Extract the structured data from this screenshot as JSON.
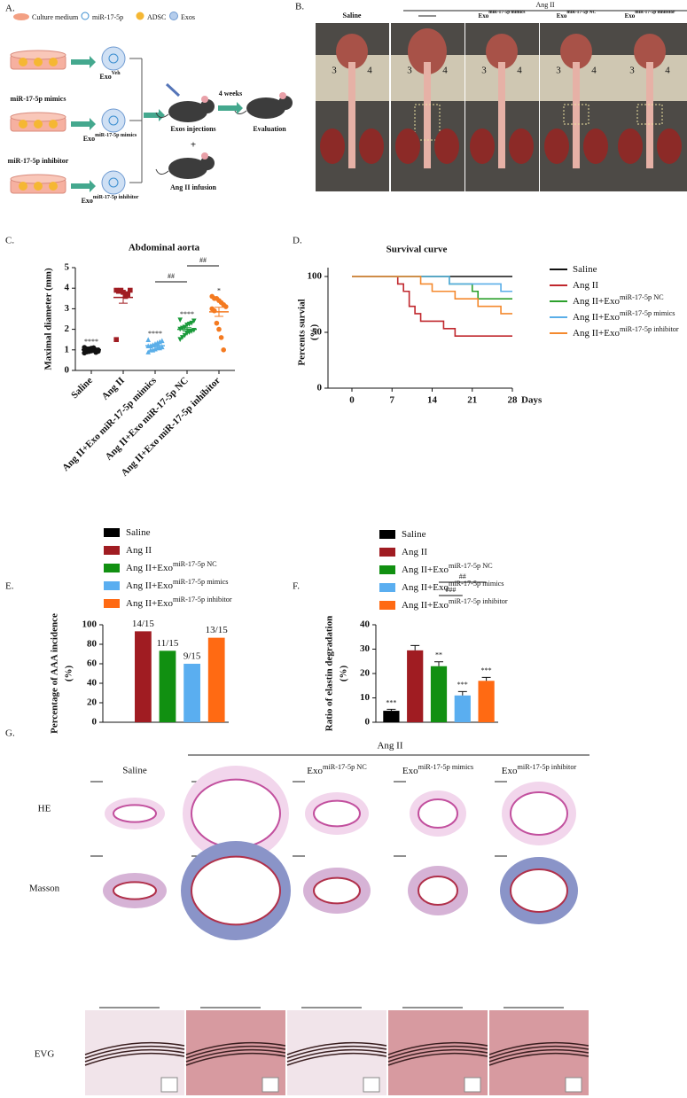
{
  "panel_labels": [
    "A.",
    "B.",
    "C.",
    "D.",
    "E.",
    "F.",
    "G."
  ],
  "schematic": {
    "legend": [
      "Culture medium",
      "miR-17-5p",
      "ADSC",
      "Exos"
    ],
    "treatments": [
      "miR-17-5p mimics",
      "miR-17-5p inhibitor"
    ],
    "exos": [
      {
        "text": "Exo",
        "sup": "Veh"
      },
      {
        "text": "Exo",
        "sup": "miR-17-5p mimics"
      },
      {
        "text": "Exo",
        "sup": "miR-17-5p inhibitor"
      }
    ],
    "steps": {
      "injection": "Exos injections",
      "plus": "+",
      "infusion": "Ang II infusion",
      "duration": "4 weeks",
      "outcome": "Evaluation"
    }
  },
  "photos": {
    "group": "Ang II",
    "saline": "Saline",
    "columns": [
      {
        "text": "Exo",
        "sup": "miR-17-5p mimics"
      },
      {
        "text": "Exo",
        "sup": "miR-17-5p NC"
      },
      {
        "text": "Exo",
        "sup": "miR-17-5p inhibitor"
      }
    ],
    "ruler": [
      "3",
      "4"
    ]
  },
  "histology": {
    "group": "Ang II",
    "saline": "Saline",
    "columns": [
      {
        "text": "Exo",
        "sup": "miR-17-5p NC"
      },
      {
        "text": "Exo",
        "sup": "miR-17-5p mimics"
      },
      {
        "text": "Exo",
        "sup": "miR-17-5p inhibitor"
      }
    ],
    "rows": [
      "HE",
      "Masson",
      "EVG"
    ]
  },
  "chart_data": [
    {
      "type": "dotplot",
      "title": "Abdominal aorta",
      "ylabel": "Maximal diameter (mm)",
      "categories": [
        "Saline",
        "Ang II",
        "Ang II+Exo miR-17-5p mimics",
        "Ang II+Exo miR-17-5p NC",
        "Ang II+Exo miR-17-5p inhibitor"
      ],
      "colors": [
        "#111111",
        "#a01c22",
        "#5aaee8",
        "#1a9a3a",
        "#f47a20"
      ],
      "markers": [
        "circle",
        "square",
        "triangle-up",
        "triangle-down",
        "circle"
      ],
      "points": [
        [
          0.85,
          0.9,
          0.92,
          0.95,
          0.97,
          1.0,
          1.0,
          1.02,
          1.05,
          1.05,
          1.08,
          1.1,
          0.88,
          0.93,
          1.12
        ],
        [
          3.9,
          3.85,
          3.9,
          3.8,
          3.6,
          3.7,
          3.9,
          1.5
        ],
        [
          0.9,
          1.0,
          1.0,
          1.05,
          1.1,
          1.1,
          1.15,
          1.2,
          1.2,
          1.25,
          1.3,
          1.35,
          1.4,
          1.45,
          1.5
        ],
        [
          1.5,
          1.6,
          1.7,
          1.8,
          1.85,
          1.9,
          1.95,
          2.0,
          2.05,
          2.1,
          2.2,
          2.25,
          2.3,
          2.4,
          2.45
        ],
        [
          3.6,
          3.5,
          3.5,
          3.4,
          3.3,
          3.2,
          3.1,
          3.0,
          2.9,
          2.3,
          2.0,
          1.6,
          1.0
        ]
      ],
      "means": [
        1.0,
        3.55,
        1.2,
        2.0,
        2.85
      ],
      "errors": [
        0.03,
        0.28,
        0.05,
        0.08,
        0.22
      ],
      "annotations": [
        "****",
        null,
        "****",
        "****",
        "*"
      ],
      "comparisons": [
        {
          "from": 2,
          "to": 3,
          "label": "##"
        },
        {
          "from": 3,
          "to": 4,
          "label": "##"
        }
      ],
      "ylim": [
        0,
        5
      ],
      "yticks": [
        0,
        1,
        2,
        3,
        4,
        5
      ]
    },
    {
      "type": "step",
      "title": "Survival curve",
      "ylabel": [
        "Percents survial",
        "(%)"
      ],
      "xlabel": "Days",
      "series": [
        {
          "name": "Saline",
          "color": "#111111",
          "x": [
            0,
            28
          ],
          "values": [
            100,
            100
          ]
        },
        {
          "name": "Ang II",
          "color": "#c0272d",
          "x": [
            0,
            8,
            8,
            9,
            9,
            10,
            10,
            11,
            11,
            12,
            12,
            16,
            16,
            18,
            18,
            28
          ],
          "values": [
            100,
            100,
            93.3,
            93.3,
            86.7,
            86.7,
            73.3,
            73.3,
            66.7,
            66.7,
            60,
            60,
            53.3,
            53.3,
            46.7,
            46.7
          ]
        },
        {
          "name": "Ang II+Exo",
          "name_sup": "miR-17-5p NC",
          "color": "#2ca02c",
          "x": [
            0,
            17,
            17,
            21,
            21,
            22,
            22,
            28
          ],
          "values": [
            100,
            100,
            93.3,
            93.3,
            86.7,
            86.7,
            80,
            80
          ]
        },
        {
          "name": "Ang II+Exo",
          "name_sup": "miR-17-5p mimics",
          "color": "#5aaee8",
          "x": [
            0,
            17,
            17,
            26,
            26,
            28
          ],
          "values": [
            100,
            100,
            93.3,
            93.3,
            86.7,
            86.7
          ]
        },
        {
          "name": "Ang II+Exo",
          "name_sup": "miR-17-5p inhibitor",
          "color": "#f4892e",
          "x": [
            0,
            12,
            12,
            14,
            14,
            18,
            18,
            22,
            22,
            26,
            26,
            28
          ],
          "values": [
            100,
            100,
            93.3,
            93.3,
            86.7,
            86.7,
            80,
            80,
            73.3,
            73.3,
            66.7,
            66.7
          ]
        }
      ],
      "xlim": [
        0,
        28
      ],
      "xticks": [
        0,
        7,
        14,
        21,
        28
      ],
      "ylim": [
        0,
        100
      ],
      "yticks": [
        0,
        50,
        100
      ]
    },
    {
      "type": "bar",
      "ylabel": [
        "Percentage of AAA incidence",
        "(%)"
      ],
      "series": [
        {
          "name": "Saline",
          "color": "#000000",
          "values": [
            0
          ],
          "value_labels": [
            null
          ]
        },
        {
          "name": "Ang II",
          "color": "#a01c22",
          "values": [
            93.3
          ],
          "value_labels": [
            "14/15"
          ]
        },
        {
          "name": "Ang II+Exo",
          "name_sup": "miR-17-5p NC",
          "color": "#119011",
          "values": [
            73.3
          ],
          "value_labels": [
            "11/15"
          ]
        },
        {
          "name": "Ang II+Exo",
          "name_sup": "miR-17-5p mimics",
          "color": "#5aaef0",
          "values": [
            60
          ],
          "value_labels": [
            "9/15"
          ]
        },
        {
          "name": "Ang II+Exo",
          "name_sup": "miR-17-5p inhibitor",
          "color": "#ff6a13",
          "values": [
            86.7
          ],
          "value_labels": [
            "13/15"
          ]
        }
      ],
      "ylim": [
        0,
        100
      ],
      "yticks": [
        0,
        20,
        40,
        60,
        80,
        100
      ]
    },
    {
      "type": "bar",
      "ylabel": [
        "Ratio of elastin degradation",
        "(%)"
      ],
      "series": [
        {
          "name": "Saline",
          "color": "#000000",
          "values": [
            4.7
          ],
          "errors": [
            0.6
          ],
          "annotations": [
            "***"
          ]
        },
        {
          "name": "Ang II",
          "color": "#a01c22",
          "values": [
            29.5
          ],
          "errors": [
            2.0
          ],
          "annotations": [
            null
          ]
        },
        {
          "name": "Ang II+Exo",
          "name_sup": "miR-17-5p NC",
          "color": "#119011",
          "values": [
            23
          ],
          "errors": [
            1.8
          ],
          "annotations": [
            "**"
          ]
        },
        {
          "name": "Ang II+Exo",
          "name_sup": "miR-17-5p mimics",
          "color": "#5aaef0",
          "values": [
            11
          ],
          "errors": [
            1.6
          ],
          "annotations": [
            "***"
          ]
        },
        {
          "name": "Ang II+Exo",
          "name_sup": "miR-17-5p inhibitor",
          "color": "#ff6a13",
          "values": [
            17
          ],
          "errors": [
            1.4
          ],
          "annotations": [
            "***"
          ]
        }
      ],
      "comparisons": [
        {
          "from": 2,
          "to": 3,
          "label": "###"
        },
        {
          "from": 2,
          "to": 4,
          "label": "##"
        }
      ],
      "ylim": [
        0,
        40
      ],
      "yticks": [
        0,
        10,
        20,
        30,
        40
      ]
    }
  ]
}
